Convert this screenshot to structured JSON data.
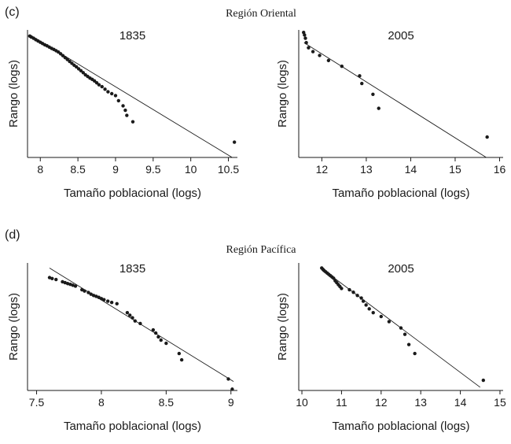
{
  "figure": {
    "panel_c_letter": "(c)",
    "panel_c_title": "Región Oriental",
    "panel_d_letter": "(d)",
    "panel_d_title": "Región Pacífica"
  },
  "chart_data": [
    {
      "type": "scatter",
      "title": "1835",
      "xlabel": "Tamaño poblacional (logs)",
      "ylabel": "Rango (logs)",
      "xlim": [
        7.83,
        10.62
      ],
      "ylim": [
        0,
        1
      ],
      "xticks": [
        8,
        8.5,
        9,
        9.5,
        10,
        10.5
      ],
      "xtick_labels": [
        "8",
        "8.5",
        "9",
        "9.5",
        "10",
        "10.5"
      ],
      "fit_line": {
        "x": [
          7.86,
          10.55
        ],
        "y": [
          0.962,
          0.0
        ]
      },
      "series": [
        {
          "x": [
            7.86,
            7.88,
            7.91,
            7.94,
            7.97,
            8.0,
            8.03,
            8.06,
            8.09,
            8.12,
            8.15,
            8.18,
            8.21,
            8.24,
            8.27,
            8.3,
            8.33,
            8.36,
            8.39,
            8.42,
            8.45,
            8.48,
            8.51,
            8.54,
            8.57,
            8.6,
            8.63,
            8.66,
            8.69,
            8.72,
            8.75,
            8.78,
            8.82,
            8.86,
            8.9,
            8.95,
            9.0,
            9.04,
            9.1,
            9.13,
            9.15,
            9.23,
            10.58
          ],
          "y": [
            0.952,
            0.944,
            0.935,
            0.923,
            0.913,
            0.903,
            0.893,
            0.883,
            0.875,
            0.865,
            0.855,
            0.847,
            0.837,
            0.827,
            0.813,
            0.798,
            0.783,
            0.768,
            0.753,
            0.738,
            0.723,
            0.71,
            0.695,
            0.68,
            0.665,
            0.648,
            0.635,
            0.622,
            0.612,
            0.6,
            0.585,
            0.57,
            0.555,
            0.535,
            0.515,
            0.5,
            0.485,
            0.445,
            0.405,
            0.37,
            0.33,
            0.28,
            0.12
          ]
        }
      ]
    },
    {
      "type": "scatter",
      "title": "2005",
      "xlabel": "Tamaño poblacional (logs)",
      "ylabel": "Rango (logs)",
      "xlim": [
        11.48,
        16.08
      ],
      "ylim": [
        0,
        1
      ],
      "xticks": [
        12,
        13,
        14,
        15,
        16
      ],
      "xtick_labels": [
        "12",
        "13",
        "14",
        "15",
        "16"
      ],
      "fit_line": {
        "x": [
          11.6,
          15.7
        ],
        "y": [
          0.9,
          0.0
        ]
      },
      "series": [
        {
          "x": [
            11.59,
            11.61,
            11.63,
            11.65,
            11.7,
            11.8,
            11.95,
            12.15,
            12.45,
            12.85,
            12.9,
            13.15,
            13.28,
            15.72
          ],
          "y": [
            0.98,
            0.96,
            0.935,
            0.9,
            0.86,
            0.83,
            0.8,
            0.76,
            0.715,
            0.64,
            0.58,
            0.495,
            0.385,
            0.16
          ]
        }
      ]
    },
    {
      "type": "scatter",
      "title": "1835",
      "xlabel": "Tamaño poblacional (logs)",
      "ylabel": "Rango (logs)",
      "xlim": [
        7.43,
        9.05
      ],
      "ylim": [
        0,
        1
      ],
      "xticks": [
        7.5,
        8,
        8.5,
        9
      ],
      "xtick_labels": [
        "7.5",
        "8",
        "8.5",
        "9"
      ],
      "fit_line": {
        "x": [
          7.6,
          9.02
        ],
        "y": [
          0.96,
          0.07
        ]
      },
      "series": [
        {
          "x": [
            7.6,
            7.62,
            7.65,
            7.7,
            7.72,
            7.74,
            7.76,
            7.78,
            7.8,
            7.85,
            7.87,
            7.9,
            7.92,
            7.94,
            7.96,
            7.98,
            8.0,
            8.02,
            8.05,
            8.08,
            8.12,
            8.2,
            8.22,
            8.24,
            8.26,
            8.3,
            8.4,
            8.42,
            8.44,
            8.46,
            8.5,
            8.6,
            8.62,
            8.98,
            9.01
          ],
          "y": [
            0.885,
            0.878,
            0.87,
            0.852,
            0.845,
            0.838,
            0.832,
            0.825,
            0.818,
            0.79,
            0.78,
            0.768,
            0.755,
            0.745,
            0.738,
            0.73,
            0.72,
            0.712,
            0.7,
            0.69,
            0.68,
            0.61,
            0.59,
            0.57,
            0.545,
            0.525,
            0.475,
            0.45,
            0.42,
            0.395,
            0.37,
            0.29,
            0.24,
            0.09,
            0.01
          ]
        }
      ]
    },
    {
      "type": "scatter",
      "title": "2005",
      "xlabel": "Tamaño poblacional (logs)",
      "ylabel": "Rango (logs)",
      "xlim": [
        9.92,
        15.08
      ],
      "ylim": [
        0,
        1
      ],
      "xticks": [
        10,
        11,
        12,
        13,
        14,
        15
      ],
      "xtick_labels": [
        "10",
        "11",
        "12",
        "13",
        "14",
        "15"
      ],
      "fit_line": {
        "x": [
          10.5,
          14.5
        ],
        "y": [
          0.955,
          0.025
        ]
      },
      "series": [
        {
          "x": [
            10.5,
            10.53,
            10.56,
            10.6,
            10.64,
            10.68,
            10.72,
            10.76,
            10.8,
            10.84,
            10.88,
            10.92,
            10.96,
            11.0,
            11.2,
            11.3,
            11.4,
            11.5,
            11.55,
            11.62,
            11.7,
            11.8,
            12.0,
            12.2,
            12.5,
            12.6,
            12.7,
            12.85,
            14.58
          ],
          "y": [
            0.96,
            0.95,
            0.94,
            0.93,
            0.92,
            0.91,
            0.9,
            0.89,
            0.88,
            0.86,
            0.845,
            0.83,
            0.815,
            0.8,
            0.79,
            0.77,
            0.745,
            0.725,
            0.7,
            0.67,
            0.64,
            0.61,
            0.58,
            0.54,
            0.49,
            0.44,
            0.36,
            0.29,
            0.08
          ]
        }
      ]
    }
  ]
}
